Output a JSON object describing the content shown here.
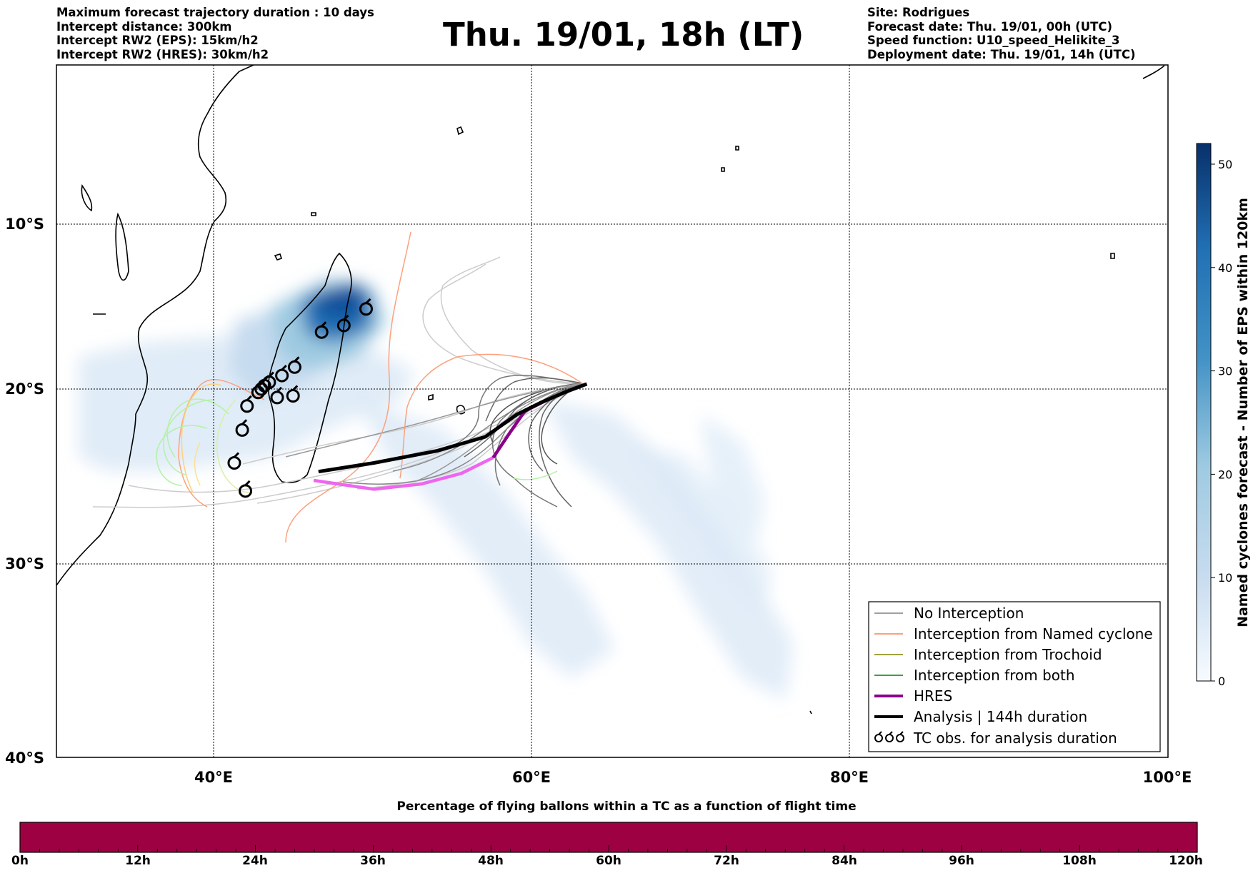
{
  "header": {
    "left_lines": [
      "Maximum forecast trajectory duration : 10 days",
      "Intercept distance: 300km",
      "Intercept RW2 (EPS):  15km/h2",
      "Intercept RW2 (HRES): 30km/h2"
    ],
    "title": "Thu. 19/01, 18h (LT)",
    "right_lines": [
      "Site: Rodrigues",
      "Forecast date: Thu. 19/01, 00h (UTC)",
      "Speed function: U10_speed_Helikite_3",
      "Deployment date: Thu. 19/01, 14h (UTC)"
    ]
  },
  "map": {
    "lon_range": [
      30,
      100
    ],
    "lat_range": [
      -40,
      -0.3
    ],
    "lon_ticks": [
      "40°E",
      "60°E",
      "80°E",
      "100°E"
    ],
    "lat_ticks": [
      "10°S",
      "20°S",
      "30°S",
      "40°S"
    ],
    "hres_track_end_lonlat": [
      63.4,
      -19.7
    ],
    "analysis_track": [
      [
        46.5,
        -24.8
      ],
      [
        50,
        -24.3
      ],
      [
        54,
        -23.6
      ],
      [
        57,
        -22.8
      ],
      [
        59,
        -21.5
      ],
      [
        60.5,
        -20.8
      ],
      [
        62,
        -20.2
      ],
      [
        63.4,
        -19.7
      ]
    ],
    "hres_track": [
      [
        46.2,
        -25.3
      ],
      [
        50,
        -25.8
      ],
      [
        53,
        -25.5
      ],
      [
        55.5,
        -24.9
      ],
      [
        57.5,
        -24.0
      ],
      [
        58.6,
        -22.5
      ],
      [
        59.5,
        -21.3
      ],
      [
        61,
        -20.6
      ],
      [
        62.5,
        -20.0
      ],
      [
        63.4,
        -19.7
      ]
    ],
    "tc_observations": [
      [
        49.5,
        -15.2
      ],
      [
        48.1,
        -16.2
      ],
      [
        46.7,
        -16.6
      ],
      [
        45.0,
        -18.7
      ],
      [
        44.2,
        -19.2
      ],
      [
        43.4,
        -19.6
      ],
      [
        43.1,
        -19.8
      ],
      [
        42.9,
        -20.0
      ],
      [
        42.7,
        -20.2
      ],
      [
        43.9,
        -20.5
      ],
      [
        44.9,
        -20.4
      ],
      [
        42.0,
        -21.0
      ],
      [
        41.7,
        -22.4
      ],
      [
        41.2,
        -24.3
      ],
      [
        41.9,
        -25.9
      ]
    ]
  },
  "legend": {
    "items": [
      {
        "label": "No Interception",
        "color": "#808080",
        "symbol": "line"
      },
      {
        "label": "Interception from Named cyclone",
        "color": "#ff7f50",
        "symbol": "line"
      },
      {
        "label": "Interception from Trochoid",
        "color": "#808000",
        "symbol": "line"
      },
      {
        "label": "Interception from both",
        "color": "#008000",
        "symbol": "line"
      },
      {
        "label": "HRES",
        "color": "#8b008b",
        "symbol": "thick-line"
      },
      {
        "label": "Analysis | 144h duration",
        "color": "#000000",
        "symbol": "thick-line"
      },
      {
        "label": "TC obs. for analysis duration",
        "color": "#000000",
        "symbol": "cyclone-icon"
      }
    ]
  },
  "colorbar": {
    "label": "Named cyclones forecast - Number of EPS within 120km",
    "ticks": [
      "0",
      "10",
      "20",
      "30",
      "40",
      "50"
    ],
    "range": [
      0,
      52
    ],
    "colormap": "Blues"
  },
  "bottom_bar": {
    "title": "Percentage of flying ballons within a TC as a function of flight time",
    "time_labels": [
      "0h",
      "12h",
      "24h",
      "36h",
      "48h",
      "60h",
      "72h",
      "84h",
      "96h",
      "108h",
      "120h"
    ],
    "fill_color": "#9e0142"
  }
}
